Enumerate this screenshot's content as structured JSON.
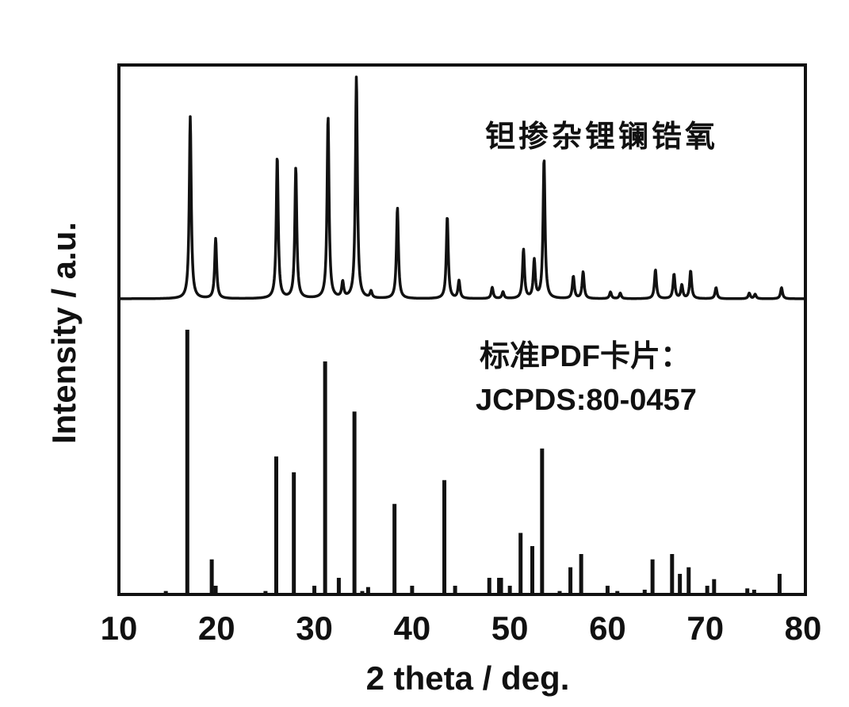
{
  "chart_data": {
    "type": "line",
    "title": "",
    "xlabel": "2 theta / deg.",
    "ylabel": "Intensity / a.u.",
    "xlim": [
      10,
      80
    ],
    "xticks": [
      "10",
      "20",
      "30",
      "40",
      "50",
      "60",
      "70",
      "80"
    ],
    "yticks": [],
    "grid": false,
    "series": [
      {
        "name": "钽掺杂锂镧锆氧",
        "style": "continuous pattern (upper)",
        "peaks": [
          [
            17.3,
            82
          ],
          [
            19.9,
            27
          ],
          [
            26.2,
            64
          ],
          [
            28.1,
            59
          ],
          [
            31.4,
            82
          ],
          [
            32.9,
            7
          ],
          [
            34.3,
            100
          ],
          [
            35.8,
            3
          ],
          [
            38.5,
            41
          ],
          [
            43.6,
            37
          ],
          [
            44.8,
            8
          ],
          [
            48.2,
            5
          ],
          [
            49.3,
            3
          ],
          [
            51.4,
            22
          ],
          [
            52.5,
            17
          ],
          [
            53.5,
            63
          ],
          [
            56.5,
            10
          ],
          [
            57.5,
            12
          ],
          [
            60.3,
            3
          ],
          [
            61.3,
            2.5
          ],
          [
            64.9,
            13
          ],
          [
            66.8,
            11
          ],
          [
            67.6,
            6
          ],
          [
            68.5,
            12.5
          ],
          [
            71.1,
            5
          ],
          [
            74.5,
            2.5
          ],
          [
            75.1,
            2
          ],
          [
            77.8,
            5
          ]
        ]
      },
      {
        "name": "标准PDF卡片：",
        "name_line2": "JCPDS:80-0457",
        "style": "stick pattern (lower)",
        "peaks": [
          [
            14.8,
            1
          ],
          [
            17.0,
            100
          ],
          [
            19.5,
            13
          ],
          [
            19.9,
            3
          ],
          [
            25.0,
            1
          ],
          [
            26.1,
            52
          ],
          [
            27.9,
            46
          ],
          [
            30.0,
            3
          ],
          [
            31.1,
            88
          ],
          [
            32.5,
            6
          ],
          [
            34.1,
            69
          ],
          [
            34.9,
            1
          ],
          [
            35.5,
            2.5
          ],
          [
            38.2,
            34
          ],
          [
            40.0,
            3
          ],
          [
            43.3,
            43
          ],
          [
            44.4,
            3
          ],
          [
            47.9,
            6
          ],
          [
            48.9,
            6
          ],
          [
            49.1,
            6
          ],
          [
            50.0,
            3
          ],
          [
            51.1,
            23
          ],
          [
            52.3,
            18
          ],
          [
            53.3,
            55
          ],
          [
            55.1,
            1
          ],
          [
            56.2,
            10
          ],
          [
            57.3,
            15
          ],
          [
            60.0,
            3
          ],
          [
            61.0,
            1
          ],
          [
            63.8,
            1.5
          ],
          [
            64.6,
            13
          ],
          [
            66.6,
            15
          ],
          [
            67.4,
            7.5
          ],
          [
            68.3,
            10
          ],
          [
            70.2,
            3
          ],
          [
            70.9,
            5.5
          ],
          [
            74.3,
            2
          ],
          [
            75.0,
            1.5
          ],
          [
            77.6,
            7.5
          ]
        ]
      }
    ],
    "colors": {
      "line": "#111111",
      "background": "#ffffff"
    }
  }
}
